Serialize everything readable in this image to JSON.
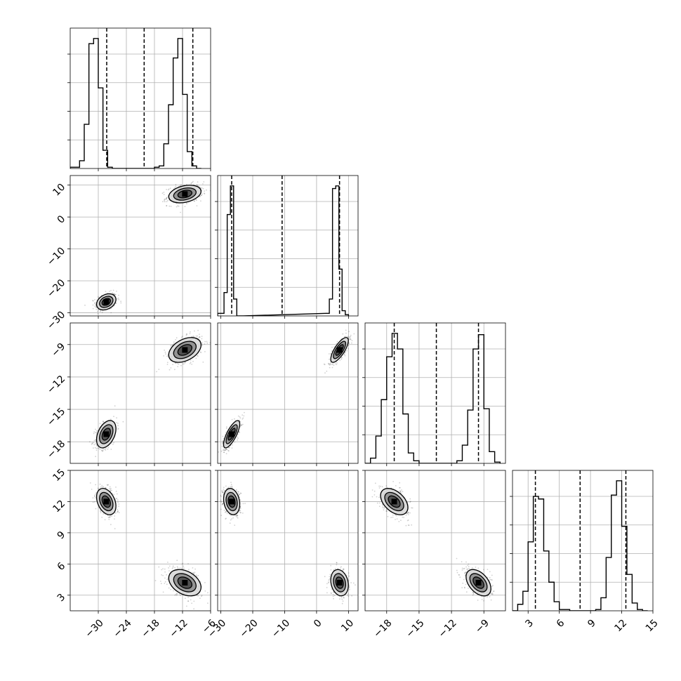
{
  "chart_data": {
    "type": "corner",
    "grid": true,
    "parameters": [
      {
        "index": 0,
        "range": [
          -36,
          -6
        ],
        "ticks": [
          -30,
          -24,
          -18,
          -12,
          -6
        ],
        "tick_labels": [
          "−30",
          "−24",
          "−18",
          "−12",
          "−6"
        ],
        "quantiles": [
          -28.2,
          -20.2,
          -9.8
        ],
        "histogram": [
          {
            "x": -35.5,
            "y": 0.01
          },
          {
            "x": -34.5,
            "y": 0.01
          },
          {
            "x": -33.5,
            "y": 0.06
          },
          {
            "x": -32.5,
            "y": 0.34
          },
          {
            "x": -31.5,
            "y": 0.96
          },
          {
            "x": -30.5,
            "y": 1.0
          },
          {
            "x": -29.5,
            "y": 0.62
          },
          {
            "x": -28.5,
            "y": 0.14
          },
          {
            "x": -27.5,
            "y": 0.01
          },
          {
            "x": -26.5,
            "y": 0.0
          },
          {
            "x": -25.5,
            "y": 0.0
          },
          {
            "x": -24.5,
            "y": 0.0
          },
          {
            "x": -23.5,
            "y": 0.0
          },
          {
            "x": -22.5,
            "y": 0.0
          },
          {
            "x": -21.5,
            "y": 0.0
          },
          {
            "x": -20.5,
            "y": 0.0
          },
          {
            "x": -19.5,
            "y": 0.0
          },
          {
            "x": -18.5,
            "y": 0.0
          },
          {
            "x": -17.5,
            "y": 0.01
          },
          {
            "x": -16.5,
            "y": 0.02
          },
          {
            "x": -15.5,
            "y": 0.19
          },
          {
            "x": -14.5,
            "y": 0.49
          },
          {
            "x": -13.5,
            "y": 0.85
          },
          {
            "x": -12.5,
            "y": 1.0
          },
          {
            "x": -11.5,
            "y": 0.57
          },
          {
            "x": -10.5,
            "y": 0.13
          },
          {
            "x": -9.5,
            "y": 0.02
          },
          {
            "x": -8.5,
            "y": 0.0
          }
        ]
      },
      {
        "index": 1,
        "range": [
          -31,
          13
        ],
        "ticks": [
          -30,
          -20,
          -10,
          0,
          10
        ],
        "tick_labels": [
          "−30",
          "−20",
          "−10",
          "0",
          "10"
        ],
        "quantiles": [
          -26.6,
          -10.8,
          7.2
        ],
        "histogram": [
          {
            "x": -30.5,
            "y": 0.02
          },
          {
            "x": -29.5,
            "y": 0.02
          },
          {
            "x": -28.5,
            "y": 0.18
          },
          {
            "x": -27.5,
            "y": 0.78
          },
          {
            "x": -26.5,
            "y": 1.0
          },
          {
            "x": -25.5,
            "y": 0.13
          },
          {
            "x": -24.5,
            "y": 0.0
          },
          {
            "x": -23.5,
            "y": 0.0
          },
          {
            "x": 3.5,
            "y": 0.02
          },
          {
            "x": 4.5,
            "y": 0.13
          },
          {
            "x": 5.5,
            "y": 0.98
          },
          {
            "x": 6.5,
            "y": 1.0
          },
          {
            "x": 7.5,
            "y": 0.36
          },
          {
            "x": 8.5,
            "y": 0.04
          },
          {
            "x": 9.5,
            "y": 0.01
          }
        ]
      },
      {
        "index": 2,
        "range": [
          -20,
          -7
        ],
        "ticks": [
          -18,
          -15,
          -12,
          -9
        ],
        "tick_labels": [
          "−18",
          "−15",
          "−12",
          "−9"
        ],
        "quantiles": [
          -17.3,
          -13.4,
          -9.5
        ],
        "histogram": [
          {
            "x": -19.75,
            "y": 0.0
          },
          {
            "x": -19.25,
            "y": 0.04
          },
          {
            "x": -18.75,
            "y": 0.21
          },
          {
            "x": -18.25,
            "y": 0.49
          },
          {
            "x": -17.75,
            "y": 0.82
          },
          {
            "x": -17.25,
            "y": 1.0
          },
          {
            "x": -16.75,
            "y": 0.88
          },
          {
            "x": -16.25,
            "y": 0.38
          },
          {
            "x": -15.75,
            "y": 0.08
          },
          {
            "x": -15.25,
            "y": 0.02
          },
          {
            "x": -14.75,
            "y": 0.0
          },
          {
            "x": -14.25,
            "y": 0.0
          },
          {
            "x": -13.75,
            "y": 0.0
          },
          {
            "x": -13.25,
            "y": 0.0
          },
          {
            "x": -12.75,
            "y": 0.0
          },
          {
            "x": -12.25,
            "y": 0.0
          },
          {
            "x": -11.75,
            "y": 0.0
          },
          {
            "x": -11.25,
            "y": 0.02
          },
          {
            "x": -10.75,
            "y": 0.14
          },
          {
            "x": -10.25,
            "y": 0.41
          },
          {
            "x": -9.75,
            "y": 0.88
          },
          {
            "x": -9.25,
            "y": 0.99
          },
          {
            "x": -8.75,
            "y": 0.42
          },
          {
            "x": -8.25,
            "y": 0.09
          },
          {
            "x": -7.75,
            "y": 0.01
          }
        ]
      },
      {
        "index": 3,
        "range": [
          1.5,
          15
        ],
        "ticks": [
          3,
          6,
          9,
          12,
          15
        ],
        "tick_labels": [
          "3",
          "6",
          "9",
          "12",
          "15"
        ],
        "quantiles": [
          3.7,
          8.0,
          12.4
        ],
        "histogram": [
          {
            "x": 1.75,
            "y": 0.0
          },
          {
            "x": 2.25,
            "y": 0.05
          },
          {
            "x": 2.75,
            "y": 0.15
          },
          {
            "x": 3.25,
            "y": 0.53
          },
          {
            "x": 3.75,
            "y": 0.88
          },
          {
            "x": 4.25,
            "y": 0.86
          },
          {
            "x": 4.75,
            "y": 0.46
          },
          {
            "x": 5.25,
            "y": 0.22
          },
          {
            "x": 5.75,
            "y": 0.07
          },
          {
            "x": 6.25,
            "y": 0.01
          },
          {
            "x": 6.75,
            "y": 0.01
          },
          {
            "x": 7.25,
            "y": 0.0
          },
          {
            "x": 7.75,
            "y": 0.0
          },
          {
            "x": 8.25,
            "y": 0.0
          },
          {
            "x": 8.75,
            "y": 0.0
          },
          {
            "x": 9.25,
            "y": 0.0
          },
          {
            "x": 9.75,
            "y": 0.01
          },
          {
            "x": 10.25,
            "y": 0.1
          },
          {
            "x": 10.75,
            "y": 0.41
          },
          {
            "x": 11.25,
            "y": 0.89
          },
          {
            "x": 11.75,
            "y": 1.0
          },
          {
            "x": 12.25,
            "y": 0.65
          },
          {
            "x": 12.75,
            "y": 0.28
          },
          {
            "x": 13.25,
            "y": 0.06
          },
          {
            "x": 13.75,
            "y": 0.01
          },
          {
            "x": 14.25,
            "y": 0.0
          }
        ]
      }
    ],
    "hist_ylim": [
      0,
      1.08
    ],
    "hist_y_ticks": [
      0.22,
      0.44,
      0.66,
      0.88
    ],
    "clusters": [
      {
        "center": [
          -28.3,
          -26.6,
          -17.3,
          12.0
        ],
        "sd": [
          0.9,
          1.1,
          0.55,
          0.55
        ],
        "weight": 0.5
      },
      {
        "center": [
          -11.5,
          7.2,
          -9.5,
          4.2
        ],
        "sd": [
          1.5,
          1.2,
          0.5,
          0.55
        ],
        "weight": 0.5
      }
    ],
    "correlations": [
      {
        "i": 1,
        "j": 0,
        "r": 0.3
      },
      {
        "i": 2,
        "j": 0,
        "r": 0.4
      },
      {
        "i": 2,
        "j": 1,
        "r": 0.75
      },
      {
        "i": 3,
        "j": 0,
        "r": -0.35
      },
      {
        "i": 3,
        "j": 1,
        "r": -0.2
      },
      {
        "i": 3,
        "j": 2,
        "r": -0.45
      }
    ],
    "density_levels": [
      {
        "level": 1,
        "sigma_scale": 1.0,
        "gray": "#4a4a4a"
      },
      {
        "level": 2,
        "sigma_scale": 1.6,
        "gray": "#8c8c8c"
      },
      {
        "level": 3,
        "sigma_scale": 2.3,
        "gray": "#d9d9d9"
      }
    ],
    "colors": {
      "ink": "#000000",
      "grid": "#b0b0b0",
      "background": "#ffffff"
    }
  }
}
